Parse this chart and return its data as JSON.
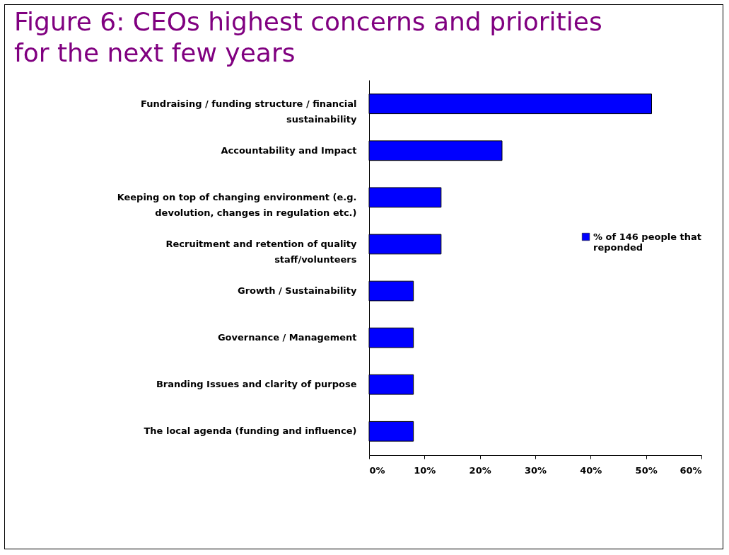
{
  "chart_data": {
    "type": "bar",
    "orientation": "horizontal",
    "title": "Figure 6: CEOs highest concerns and priorities for the next few years",
    "categories": [
      "Fundraising / funding structure / financial sustainability",
      "Accountability and Impact",
      "Keeping on top of changing environment (e.g. devolution, changes in regulation etc.)",
      "Recruitment and retention of quality staff/volunteers",
      "Growth / Sustainability",
      "Governance / Management",
      "Branding Issues and clarity of purpose",
      "The local agenda (funding and influence)"
    ],
    "series": [
      {
        "name": "% of 146 people that reponded",
        "color": "#0000ff",
        "values": [
          51,
          24,
          13,
          13,
          8,
          8,
          8,
          8
        ]
      }
    ],
    "xlim": [
      0,
      60
    ],
    "xticks": [
      {
        "value": 0,
        "label": "0%"
      },
      {
        "value": 10,
        "label": "10%"
      },
      {
        "value": 20,
        "label": "20%"
      },
      {
        "value": 30,
        "label": "30%"
      },
      {
        "value": 40,
        "label": "40%"
      },
      {
        "value": 50,
        "label": "50%"
      },
      {
        "value": 60,
        "label": "60%"
      }
    ],
    "grid": false,
    "legend": "right"
  }
}
